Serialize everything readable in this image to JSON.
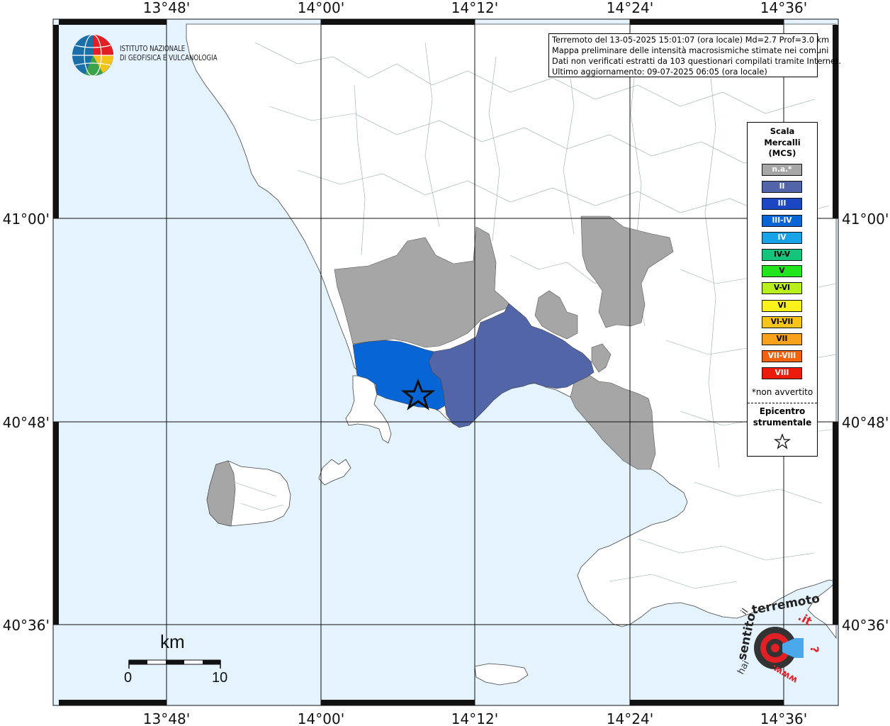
{
  "info": {
    "line1": "Terremoto del 13-05-2025 15:01:07 (ora locale) Md=2.7 Prof=3.0 km",
    "line2": "Mappa preliminare delle intensità macrosismiche stimate nei comuni",
    "line3": "Dati non verificati estratti da 103 questionari compilati tramite Internet.",
    "line4": "Ultimo aggiornamento: 09-07-2025 06:05 (ora locale)"
  },
  "institute": {
    "line1": "ISTITUTO NAZIONALE",
    "line2": "DI GEOFISICA E VULCANOLOGIA"
  },
  "legend": {
    "title1": "Scala",
    "title2": "Mercalli",
    "title3": "(MCS)",
    "items": [
      {
        "label": "n.a.*",
        "color": "#a6a6a6",
        "text_color": "#ffffff"
      },
      {
        "label": "II",
        "color": "#5165a8",
        "text_color": "#ffffff"
      },
      {
        "label": "III",
        "color": "#1b46c4",
        "text_color": "#ffffff"
      },
      {
        "label": "III-IV",
        "color": "#0865d6",
        "text_color": "#ffffff"
      },
      {
        "label": "IV",
        "color": "#18a3e8",
        "text_color": "#ffffff"
      },
      {
        "label": "IV-V",
        "color": "#14c47a",
        "text_color": "#000000"
      },
      {
        "label": "V",
        "color": "#22e51c",
        "text_color": "#000000"
      },
      {
        "label": "V-VI",
        "color": "#b9ef1b",
        "text_color": "#000000"
      },
      {
        "label": "VI",
        "color": "#fbf21b",
        "text_color": "#000000"
      },
      {
        "label": "VI-VII",
        "color": "#f7c51a",
        "text_color": "#000000"
      },
      {
        "label": "VII",
        "color": "#f7a21a",
        "text_color": "#000000"
      },
      {
        "label": "VII-VIII",
        "color": "#f4620e",
        "text_color": "#ffffff"
      },
      {
        "label": "VIII",
        "color": "#ec1b0c",
        "text_color": "#ffffff"
      }
    ],
    "note": "*non avvertito",
    "epicenter1": "Epicentro",
    "epicenter2": "strumentale"
  },
  "axes": {
    "top": [
      "13°48'",
      "14°00'",
      "14°12'",
      "14°24'",
      "14°36'"
    ],
    "bottom": [
      "13°48'",
      "14°00'",
      "14°12'",
      "14°24'",
      "14°36'"
    ],
    "left": [
      "41°00'",
      "40°48'",
      "40°36'"
    ],
    "right": [
      "41°00'",
      "40°48'",
      "40°36'"
    ]
  },
  "scalebar": {
    "unit": "km",
    "start": "0",
    "end": "10"
  },
  "logo2": {
    "text_hai": "hai",
    "text_sentito": "sentito",
    "text_il": "il",
    "text_terremoto": "terremoto",
    "text_it": ".it",
    "text_www": "www.",
    "text_q": "?"
  },
  "colors": {
    "sea": "#e4f3fd",
    "land": "#ffffff",
    "na": "#a6a6a6",
    "ii": "#5165a8",
    "iii_iv": "#0865d6"
  }
}
